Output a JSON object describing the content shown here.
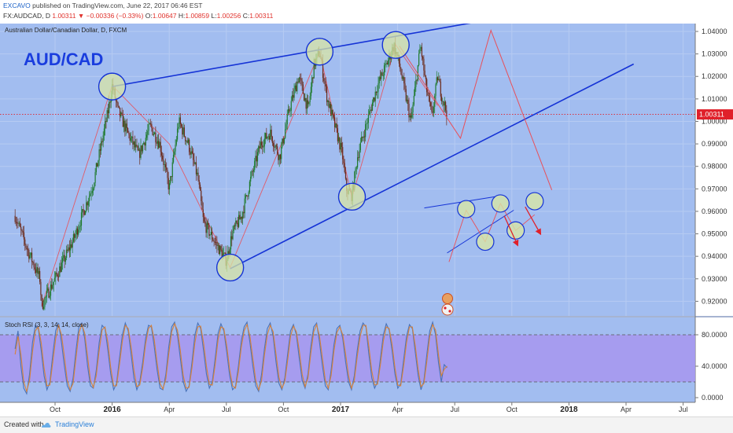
{
  "header": {
    "author": "EXCAVO",
    "published_text": "published on TradingView.com, June 22, 2017 06:46 EST",
    "symbol": "FX:AUDCAD, D",
    "last": "1.00311",
    "arrow": "▼",
    "change": "−0.00336 (−0.33%)",
    "o_label": "O:",
    "o": "1.00647",
    "h_label": "H:",
    "h": "1.00859",
    "l_label": "L:",
    "l": "1.00256",
    "c_label": "C:",
    "c": "1.00311"
  },
  "chart_data": [
    {
      "type": "candlestick",
      "title": "Australian Dollar/Canadian Dollar, D, FXCM",
      "watermark": "AUD/CAD",
      "ylim": [
        0.9135,
        1.0435
      ],
      "y_ticks": [
        "1.04000",
        "1.03000",
        "1.02000",
        "1.01000",
        "1.00000",
        "0.99000",
        "0.98000",
        "0.97000",
        "0.96000",
        "0.95000",
        "0.94000",
        "0.93000",
        "0.92000"
      ],
      "x_ticks": [
        {
          "label": "Oct",
          "month": 0,
          "bold": false
        },
        {
          "label": "2016",
          "month": 3,
          "bold": true
        },
        {
          "label": "Apr",
          "month": 6,
          "bold": false
        },
        {
          "label": "Jul",
          "month": 9,
          "bold": false
        },
        {
          "label": "Oct",
          "month": 12,
          "bold": false
        },
        {
          "label": "2017",
          "month": 15,
          "bold": true
        },
        {
          "label": "Apr",
          "month": 18,
          "bold": false
        },
        {
          "label": "Jul",
          "month": 21,
          "bold": false
        },
        {
          "label": "Oct",
          "month": 24,
          "bold": false
        },
        {
          "label": "2018",
          "month": 27,
          "bold": true
        },
        {
          "label": "Apr",
          "month": 30,
          "bold": false
        },
        {
          "label": "Jul",
          "month": 33,
          "bold": false
        }
      ],
      "price_path": [
        [
          -2.1,
          0.958
        ],
        [
          -1.5,
          0.944
        ],
        [
          -0.8,
          0.93
        ],
        [
          -0.7,
          0.918
        ],
        [
          0.0,
          0.93
        ],
        [
          1.0,
          0.948
        ],
        [
          2.0,
          0.972
        ],
        [
          2.8,
          1.005
        ],
        [
          3.0,
          1.016
        ],
        [
          3.3,
          1.005
        ],
        [
          3.8,
          0.995
        ],
        [
          4.4,
          0.985
        ],
        [
          5.0,
          0.998
        ],
        [
          5.5,
          0.99
        ],
        [
          6.0,
          0.97
        ],
        [
          6.5,
          1.0
        ],
        [
          7.0,
          0.99
        ],
        [
          7.5,
          0.975
        ],
        [
          7.8,
          0.955
        ],
        [
          8.5,
          0.945
        ],
        [
          9.0,
          0.938
        ],
        [
          9.3,
          0.95
        ],
        [
          9.8,
          0.958
        ],
        [
          10.3,
          0.975
        ],
        [
          10.8,
          0.99
        ],
        [
          11.3,
          0.995
        ],
        [
          11.8,
          0.984
        ],
        [
          12.3,
          1.005
        ],
        [
          12.8,
          1.02
        ],
        [
          13.3,
          1.005
        ],
        [
          13.6,
          1.025
        ],
        [
          13.9,
          1.031
        ],
        [
          14.3,
          1.01
        ],
        [
          14.8,
          0.995
        ],
        [
          15.1,
          0.985
        ],
        [
          15.3,
          0.97
        ],
        [
          15.6,
          0.967
        ],
        [
          15.9,
          0.985
        ],
        [
          16.4,
          1.0
        ],
        [
          16.9,
          1.015
        ],
        [
          17.4,
          1.025
        ],
        [
          17.8,
          1.034
        ],
        [
          18.1,
          1.025
        ],
        [
          18.4,
          1.012
        ],
        [
          18.7,
          1.0
        ],
        [
          19.0,
          1.02
        ],
        [
          19.2,
          1.034
        ],
        [
          19.5,
          1.015
        ],
        [
          19.8,
          1.002
        ],
        [
          20.1,
          1.02
        ],
        [
          20.3,
          1.012
        ],
        [
          20.6,
          1.0031
        ]
      ],
      "last_price": 1.00311,
      "trendline_upper": {
        "from": [
          3.0,
          1.0155
        ],
        "to": [
          25.0,
          1.0485
        ]
      },
      "trendline_lower": {
        "from": [
          9.2,
          0.9345
        ],
        "to": [
          30.4,
          1.0255
        ]
      },
      "projection_path": [
        [
          18.1,
          1.0335
        ],
        [
          20.6,
          1.0015
        ],
        [
          21.3,
          0.9925
        ],
        [
          22.9,
          1.0405
        ],
        [
          26.1,
          0.9695
        ]
      ],
      "zigzag_path": [
        [
          -0.7,
          0.918
        ],
        [
          3.0,
          1.016
        ],
        [
          6.0,
          0.99
        ],
        [
          9.2,
          0.935
        ],
        [
          13.9,
          1.031
        ],
        [
          15.6,
          0.966
        ],
        [
          17.9,
          1.034
        ],
        [
          20.1,
          1.007
        ]
      ],
      "highlight_points": [
        [
          3.0,
          1.0155
        ],
        [
          9.2,
          0.935
        ],
        [
          13.9,
          1.031
        ],
        [
          15.6,
          0.9665
        ],
        [
          17.9,
          1.034
        ]
      ],
      "mini_pattern": {
        "line_upper": {
          "from": [
            19.4,
            0.9615
          ],
          "to": [
            23.1,
            0.9665
          ]
        },
        "line_lower": {
          "from": [
            20.6,
            0.9415
          ],
          "to": [
            24.1,
            0.9605
          ]
        },
        "zigzag": [
          [
            20.7,
            0.9375
          ],
          [
            21.6,
            0.9605
          ],
          [
            22.6,
            0.9465
          ],
          [
            23.4,
            0.9635
          ],
          [
            24.2,
            0.9515
          ],
          [
            25.2,
            0.9585
          ]
        ],
        "circles": [
          [
            21.6,
            0.961
          ],
          [
            22.6,
            0.9465
          ],
          [
            23.4,
            0.9635
          ],
          [
            24.2,
            0.9515
          ],
          [
            25.2,
            0.9645
          ]
        ],
        "arrows": [
          {
            "from": [
              23.6,
              0.958
            ],
            "to": [
              24.3,
              0.945
            ]
          },
          {
            "from": [
              24.7,
              0.962
            ],
            "to": [
              25.5,
              0.95
            ]
          }
        ]
      }
    },
    {
      "type": "line",
      "title": "Stoch RSI (3, 3, 14, 14, close)",
      "ylim": [
        -6,
        102
      ],
      "y_ticks": [
        "80.0000",
        "40.0000",
        "0.0000"
      ],
      "band": [
        20,
        80
      ],
      "series": [
        {
          "color": "#4a73b8",
          "values": [
            62,
            85,
            40,
            12,
            5,
            30,
            70,
            92,
            88,
            60,
            28,
            10,
            20,
            55,
            85,
            95,
            70,
            40,
            15,
            8,
            25,
            60,
            90,
            95,
            75,
            40,
            15,
            12,
            35,
            70,
            92,
            88,
            60,
            30,
            10,
            18,
            50,
            80,
            95,
            85,
            55,
            25,
            10,
            20,
            45,
            75,
            92,
            90,
            65,
            35,
            12,
            10,
            30,
            65,
            90,
            96,
            80,
            50,
            20,
            8,
            15,
            45,
            80,
            95,
            88,
            60,
            30,
            12,
            20,
            50,
            82,
            94,
            85,
            58,
            28,
            10,
            14,
            40,
            72,
            90,
            96,
            70,
            40,
            15,
            8,
            30,
            62,
            88,
            95,
            78,
            45,
            18,
            10,
            25,
            55,
            85,
            93,
            80,
            50,
            22,
            12,
            30,
            65,
            90,
            95,
            70,
            40,
            15,
            10,
            35,
            68,
            88,
            92,
            75,
            45,
            20,
            10,
            28,
            60,
            85,
            95,
            90,
            55,
            25,
            12,
            20,
            50,
            80,
            94,
            86,
            60,
            30,
            12,
            18,
            48,
            78,
            93,
            88,
            58,
            28,
            10,
            22,
            55,
            85,
            96,
            80,
            45,
            20,
            42,
            38
          ]
        },
        {
          "color": "#d9823a",
          "values": [
            55,
            78,
            55,
            20,
            8,
            22,
            58,
            85,
            90,
            70,
            38,
            15,
            16,
            45,
            75,
            92,
            80,
            52,
            22,
            10,
            18,
            50,
            82,
            93,
            82,
            52,
            22,
            13,
            28,
            60,
            86,
            90,
            70,
            38,
            15,
            15,
            42,
            72,
            92,
            88,
            65,
            35,
            14,
            16,
            38,
            68,
            88,
            92,
            74,
            44,
            18,
            11,
            24,
            56,
            84,
            94,
            86,
            60,
            28,
            12,
            13,
            38,
            70,
            90,
            91,
            70,
            40,
            17,
            16,
            42,
            74,
            90,
            88,
            66,
            36,
            15,
            12,
            33,
            64,
            85,
            93,
            78,
            50,
            22,
            10,
            22,
            54,
            80,
            92,
            84,
            55,
            26,
            12,
            20,
            47,
            78,
            91,
            84,
            60,
            30,
            14,
            25,
            56,
            84,
            93,
            78,
            50,
            22,
            12,
            28,
            60,
            83,
            90,
            80,
            55,
            28,
            12,
            22,
            52,
            78,
            92,
            92,
            65,
            34,
            16,
            17,
            42,
            72,
            90,
            88,
            68,
            38,
            16,
            15,
            40,
            70,
            90,
            90,
            66,
            36,
            14,
            18,
            46,
            78,
            93,
            86,
            55,
            28,
            36,
            40
          ]
        }
      ]
    }
  ],
  "footer": {
    "created_with": "Created with",
    "brand": "TradingView"
  }
}
